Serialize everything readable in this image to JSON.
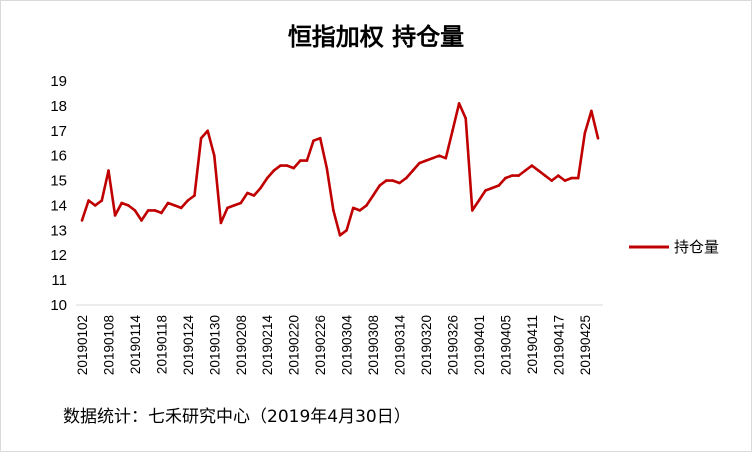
{
  "chart_data": {
    "type": "line",
    "title": "恒指加权 持仓量",
    "xlabel": "",
    "ylabel": "",
    "ylim": [
      10,
      19
    ],
    "yticks": [
      "10",
      "11",
      "12",
      "13",
      "14",
      "15",
      "16",
      "17",
      "18",
      "19"
    ],
    "x": [
      "20190102",
      "20190103",
      "20190104",
      "20190107",
      "20190108",
      "20190109",
      "20190110",
      "20190111",
      "20190114",
      "20190115",
      "20190116",
      "20190117",
      "20190118",
      "20190121",
      "20190122",
      "20190123",
      "20190124",
      "20190125",
      "20190128",
      "20190129",
      "20190130",
      "20190131",
      "20190201",
      "20190204",
      "20190208",
      "20190211",
      "20190212",
      "20190213",
      "20190214",
      "20190215",
      "20190218",
      "20190219",
      "20190220",
      "20190221",
      "20190222",
      "20190225",
      "20190226",
      "20190227",
      "20190228",
      "20190301",
      "20190304",
      "20190305",
      "20190306",
      "20190307",
      "20190308",
      "20190311",
      "20190312",
      "20190313",
      "20190314",
      "20190315",
      "20190318",
      "20190319",
      "20190320",
      "20190321",
      "20190322",
      "20190325",
      "20190326",
      "20190327",
      "20190328",
      "20190329",
      "20190401",
      "20190402",
      "20190403",
      "20190404",
      "20190405",
      "20190408",
      "20190409",
      "20190410",
      "20190411",
      "20190412",
      "20190415",
      "20190416",
      "20190417",
      "20190418",
      "20190423",
      "20190424",
      "20190425",
      "20190426",
      "20190429"
    ],
    "xticks": [
      "20190102",
      "20190108",
      "20190114",
      "20190118",
      "20190124",
      "20190130",
      "20190208",
      "20190214",
      "20190220",
      "20190226",
      "20190304",
      "20190308",
      "20190314",
      "20190320",
      "20190326",
      "20190401",
      "20190405",
      "20190411",
      "20190417",
      "20190425"
    ],
    "series": [
      {
        "name": "持仓量",
        "color": "#c00000",
        "values": [
          13.4,
          14.2,
          14.0,
          14.2,
          15.4,
          13.6,
          14.1,
          14.0,
          13.8,
          13.4,
          13.8,
          13.8,
          13.7,
          14.1,
          14.0,
          13.9,
          14.2,
          14.4,
          16.7,
          17.0,
          16.0,
          13.3,
          13.9,
          14.0,
          14.1,
          14.5,
          14.4,
          14.7,
          15.1,
          15.4,
          15.6,
          15.6,
          15.5,
          15.8,
          15.8,
          16.6,
          16.7,
          15.5,
          13.8,
          12.8,
          13.0,
          13.9,
          13.8,
          14.0,
          14.4,
          14.8,
          15.0,
          15.0,
          14.9,
          15.1,
          15.4,
          15.7,
          15.8,
          15.9,
          16.0,
          15.9,
          17.0,
          18.1,
          17.5,
          13.8,
          14.2,
          14.6,
          14.7,
          14.8,
          15.1,
          15.2,
          15.2,
          15.4,
          15.6,
          15.4,
          15.2,
          15.0,
          15.2,
          15.0,
          15.1,
          15.1,
          16.9,
          17.8,
          16.7
        ]
      }
    ],
    "legend_position": "right",
    "grid": false
  },
  "source": "数据统计：七禾研究中心（2019年4月30日）"
}
